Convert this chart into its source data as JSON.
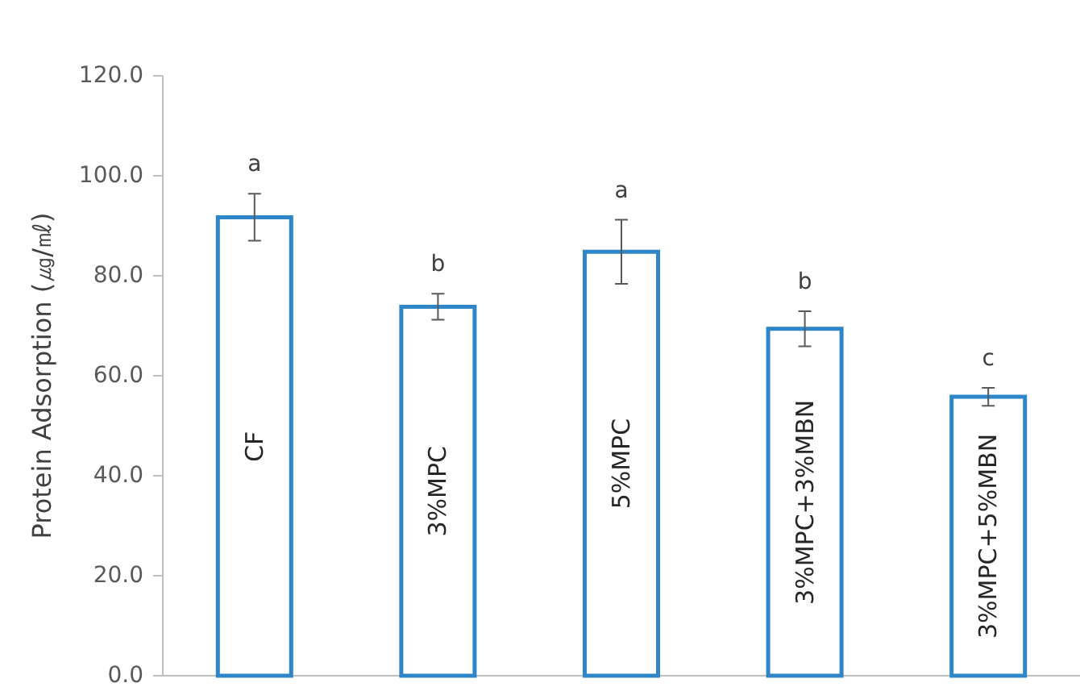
{
  "chart_data": {
    "type": "bar",
    "ylabel": "Protein Adsorption (㎍/㎖)",
    "categories": [
      "CF",
      "3%MPC",
      "5%MPC",
      "3%MPC+3%MBN",
      "3%MPC+5%MBN"
    ],
    "values": [
      91.7,
      73.8,
      84.8,
      69.4,
      55.8
    ],
    "errors": [
      4.7,
      2.6,
      6.4,
      3.5,
      1.8
    ],
    "color": "#2e86c8",
    "ylim": [
      0,
      120
    ],
    "yticks": [
      {
        "value": 0,
        "label": "0.0"
      },
      {
        "value": 20,
        "label": "20.0"
      },
      {
        "value": 40,
        "label": "40.0"
      },
      {
        "value": 60,
        "label": "60.0"
      },
      {
        "value": 80,
        "label": "80.0"
      },
      {
        "value": 100,
        "label": "100.0"
      },
      {
        "value": 120,
        "label": "120.0"
      }
    ],
    "annotations": [
      "a",
      "b",
      "a",
      "b",
      "c"
    ],
    "grid": false
  }
}
